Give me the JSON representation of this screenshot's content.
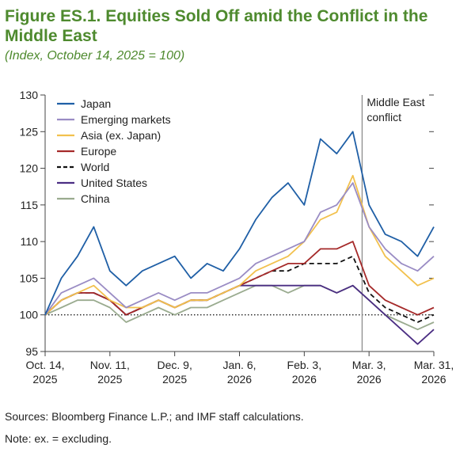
{
  "header": {
    "title": "Figure ES.1. Equities Sold Off amid the Conflict in the Middle East",
    "subtitle": "(Index, October 14, 2025 = 100)"
  },
  "footer": {
    "sources": "Sources: Bloomberg Finance L.P.; and IMF staff calculations.",
    "note": "Note: ex. = excluding."
  },
  "chart_data": {
    "type": "line",
    "title": "Figure ES.1. Equities Sold Off amid the Conflict in the Middle East",
    "subtitle": "(Index, October 14, 2025 = 100)",
    "xlabel": "",
    "ylabel": "",
    "ylim": [
      95,
      130
    ],
    "yticks": [
      95,
      100,
      105,
      110,
      115,
      120,
      125,
      130
    ],
    "xlim": [
      "2025-10-14",
      "2026-03-31"
    ],
    "xticks": [
      {
        "date": "2025-10-14",
        "line1": "Oct. 14,",
        "line2": "2025"
      },
      {
        "date": "2025-11-11",
        "line1": "Nov. 11,",
        "line2": "2025"
      },
      {
        "date": "2025-12-09",
        "line1": "Dec. 9,",
        "line2": "2025"
      },
      {
        "date": "2026-01-06",
        "line1": "Jan. 6,",
        "line2": "2026"
      },
      {
        "date": "2026-02-03",
        "line1": "Feb. 3,",
        "line2": "2026"
      },
      {
        "date": "2026-03-03",
        "line1": "Mar. 3,",
        "line2": "2026"
      },
      {
        "date": "2026-03-31",
        "line1": "Mar. 31,",
        "line2": "2026"
      }
    ],
    "reference_line": {
      "y": 100,
      "style": "dotted"
    },
    "annotation": {
      "date": "2026-02-28",
      "line1": "Middle East",
      "line2": "conflict"
    },
    "legend_position": "top-left",
    "grid": false,
    "x": [
      "2025-10-14",
      "2025-10-21",
      "2025-10-28",
      "2025-11-04",
      "2025-11-11",
      "2025-11-18",
      "2025-11-25",
      "2025-12-02",
      "2025-12-09",
      "2025-12-16",
      "2025-12-23",
      "2025-12-30",
      "2026-01-06",
      "2026-01-13",
      "2026-01-20",
      "2026-01-27",
      "2026-02-03",
      "2026-02-10",
      "2026-02-17",
      "2026-02-24",
      "2026-03-03",
      "2026-03-10",
      "2026-03-17",
      "2026-03-24",
      "2026-03-31"
    ],
    "series": [
      {
        "name": "Japan",
        "color": "#1f5fa6",
        "dash": "",
        "values": [
          100,
          105,
          108,
          112,
          106,
          104,
          106,
          107,
          108,
          105,
          107,
          106,
          109,
          113,
          116,
          118,
          115,
          124,
          122,
          125,
          115,
          111,
          110,
          108,
          112
        ]
      },
      {
        "name": "Emerging markets",
        "color": "#9a8cc4",
        "dash": "",
        "values": [
          100,
          103,
          104,
          105,
          103,
          101,
          102,
          103,
          102,
          103,
          103,
          104,
          105,
          107,
          108,
          109,
          110,
          114,
          115,
          118,
          112,
          109,
          107,
          106,
          108
        ]
      },
      {
        "name": "Asia (ex. Japan)",
        "color": "#f2c14e",
        "dash": "",
        "values": [
          100,
          102,
          103,
          104,
          102,
          101,
          101,
          102,
          101,
          102,
          102,
          103,
          104,
          106,
          107,
          108,
          110,
          113,
          114,
          119,
          112,
          108,
          106,
          104,
          105
        ]
      },
      {
        "name": "Europe",
        "color": "#a52a2a",
        "dash": "",
        "values": [
          100,
          102,
          103,
          103,
          102,
          100,
          101,
          102,
          101,
          102,
          102,
          103,
          104,
          105,
          106,
          107,
          107,
          109,
          109,
          110,
          104,
          102,
          101,
          100,
          101
        ]
      },
      {
        "name": "World",
        "color": "#111111",
        "dash": "6,4",
        "values": [
          100,
          102,
          103,
          103,
          102,
          100,
          101,
          102,
          101,
          102,
          102,
          103,
          104,
          105,
          106,
          106,
          107,
          107,
          107,
          108,
          103,
          101,
          100,
          99,
          100
        ]
      },
      {
        "name": "United States",
        "color": "#4b2e83",
        "dash": "",
        "values": [
          100,
          102,
          103,
          103,
          102,
          100,
          101,
          102,
          101,
          102,
          102,
          103,
          104,
          104,
          104,
          104,
          104,
          104,
          103,
          104,
          102,
          100,
          98,
          96,
          98
        ]
      },
      {
        "name": "China",
        "color": "#9aab8f",
        "dash": "",
        "values": [
          100,
          101,
          102,
          102,
          101,
          99,
          100,
          101,
          100,
          101,
          101,
          102,
          103,
          104,
          104,
          103,
          104,
          104,
          103,
          104,
          102,
          100,
          99,
          98,
          99
        ]
      }
    ]
  }
}
